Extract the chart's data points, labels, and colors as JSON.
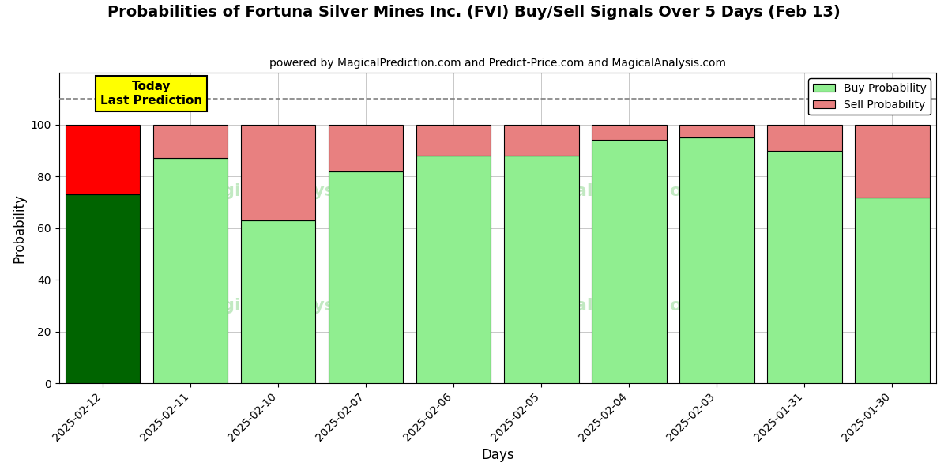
{
  "title": "Probabilities of Fortuna Silver Mines Inc. (FVI) Buy/Sell Signals Over 5 Days (Feb 13)",
  "subtitle": "powered by MagicalPrediction.com and Predict-Price.com and MagicalAnalysis.com",
  "xlabel": "Days",
  "ylabel": "Probability",
  "categories": [
    "2025-02-12",
    "2025-02-11",
    "2025-02-10",
    "2025-02-07",
    "2025-02-06",
    "2025-02-05",
    "2025-02-04",
    "2025-02-03",
    "2025-01-31",
    "2025-01-30"
  ],
  "buy_values": [
    73,
    87,
    63,
    82,
    88,
    88,
    94,
    95,
    90,
    72
  ],
  "sell_values": [
    27,
    13,
    37,
    18,
    12,
    12,
    6,
    5,
    10,
    28
  ],
  "today_buy_color": "#006400",
  "today_sell_color": "#FF0000",
  "buy_color": "#90EE90",
  "sell_color": "#E88080",
  "today_label": "Today\nLast Prediction",
  "legend_buy": "Buy Probability",
  "legend_sell": "Sell Probability",
  "ylim": [
    0,
    120
  ],
  "dashed_line_y": 110,
  "bar_edgecolor": "#000000",
  "title_fontsize": 14,
  "subtitle_fontsize": 10,
  "axis_label_fontsize": 12,
  "tick_fontsize": 10
}
